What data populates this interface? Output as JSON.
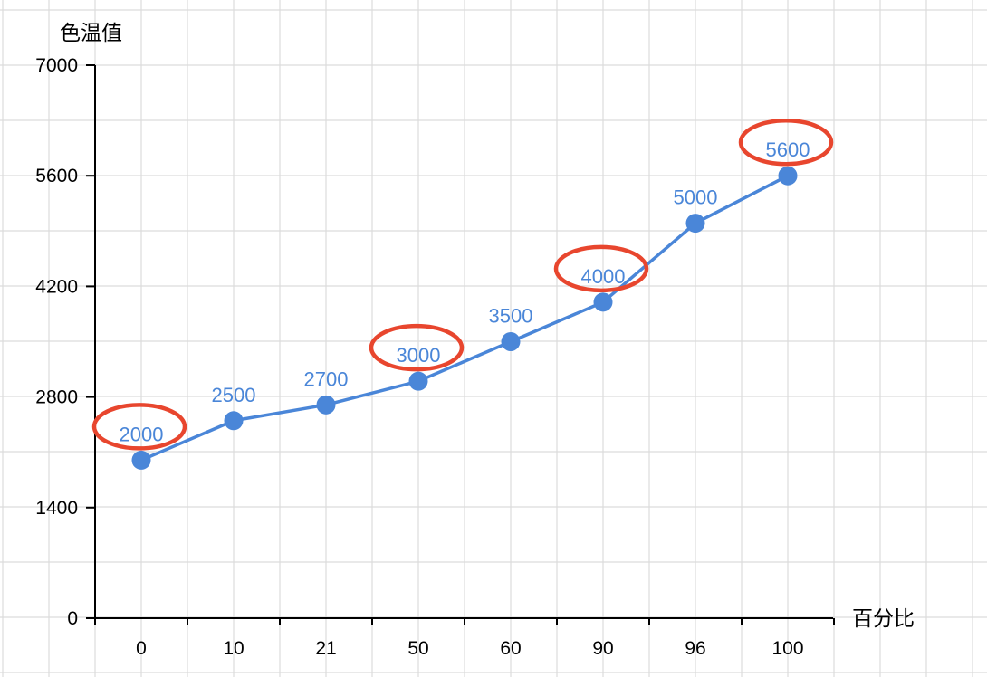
{
  "chart_data": {
    "type": "line",
    "title": "",
    "xlabel": "百分比",
    "ylabel": "色温值",
    "categories": [
      "0",
      "10",
      "21",
      "50",
      "60",
      "90",
      "96",
      "100"
    ],
    "series": [
      {
        "values": [
          2000,
          2500,
          2700,
          3000,
          3500,
          4000,
          5000,
          5600
        ]
      }
    ],
    "ylim": [
      0,
      7000
    ],
    "yticks": [
      "0",
      "1400",
      "2800",
      "4200",
      "5600",
      "7000"
    ],
    "data_labels": [
      "2000",
      "2500",
      "2700",
      "3000",
      "3500",
      "4000",
      "5000",
      "5600"
    ],
    "highlighted_labels": [
      0,
      3,
      5,
      7
    ],
    "grid": true,
    "colors": {
      "series": "#4a86d8",
      "highlight": "#e8462e",
      "grid": "#dcdcdc",
      "axis": "#000000"
    }
  }
}
